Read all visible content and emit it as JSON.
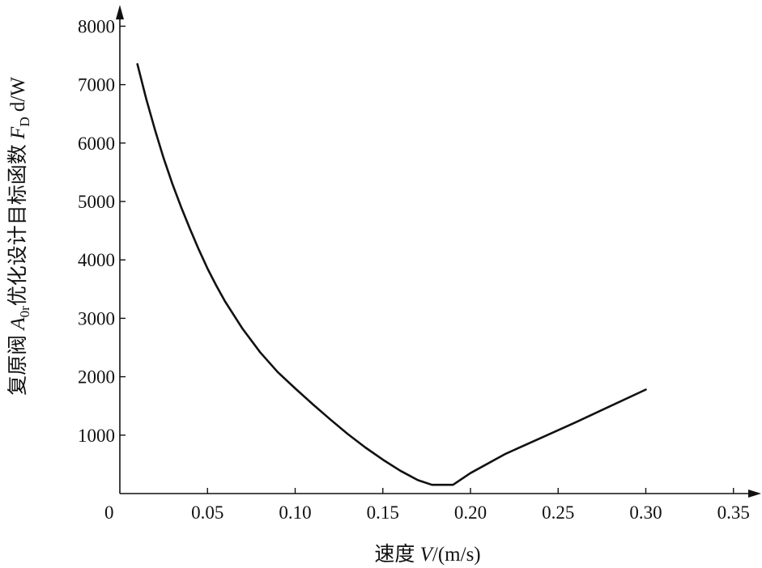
{
  "chart_data": {
    "type": "line",
    "xlabel": {
      "prefix": "速度 ",
      "var": "V",
      "unit": "/(m/s)"
    },
    "ylabel": {
      "prefix": "复原阀 ",
      "var": "A",
      "var_sub": "0r",
      "mid": "优化设计目标函数 ",
      "fn": "F",
      "fn_sub": "D",
      "fn_suffix": " d/W"
    },
    "origin_label": "0",
    "xlim": [
      0,
      0.36
    ],
    "ylim": [
      0,
      8300
    ],
    "x_ticks": [
      0.05,
      0.1,
      0.15,
      0.2,
      0.25,
      0.3,
      0.35
    ],
    "x_tick_labels": [
      "0.05",
      "0.10",
      "0.15",
      "0.20",
      "0.25",
      "0.30",
      "0.35"
    ],
    "y_ticks": [
      1000,
      2000,
      3000,
      4000,
      5000,
      6000,
      7000,
      8000
    ],
    "y_tick_labels": [
      "1000",
      "2000",
      "3000",
      "4000",
      "5000",
      "6000",
      "7000",
      "8000"
    ],
    "grid": false,
    "series": [
      {
        "color": "#111111",
        "points": [
          [
            0.01,
            7350
          ],
          [
            0.015,
            6760
          ],
          [
            0.02,
            6230
          ],
          [
            0.025,
            5740
          ],
          [
            0.03,
            5300
          ],
          [
            0.035,
            4900
          ],
          [
            0.04,
            4530
          ],
          [
            0.045,
            4180
          ],
          [
            0.05,
            3850
          ],
          [
            0.055,
            3560
          ],
          [
            0.06,
            3290
          ],
          [
            0.07,
            2820
          ],
          [
            0.08,
            2420
          ],
          [
            0.09,
            2080
          ],
          [
            0.1,
            1800
          ],
          [
            0.11,
            1530
          ],
          [
            0.12,
            1270
          ],
          [
            0.13,
            1020
          ],
          [
            0.14,
            790
          ],
          [
            0.15,
            580
          ],
          [
            0.16,
            390
          ],
          [
            0.17,
            230
          ],
          [
            0.178,
            150
          ],
          [
            0.19,
            150
          ],
          [
            0.2,
            350
          ],
          [
            0.22,
            680
          ],
          [
            0.24,
            950
          ],
          [
            0.26,
            1220
          ],
          [
            0.28,
            1500
          ],
          [
            0.3,
            1780
          ]
        ]
      }
    ]
  }
}
